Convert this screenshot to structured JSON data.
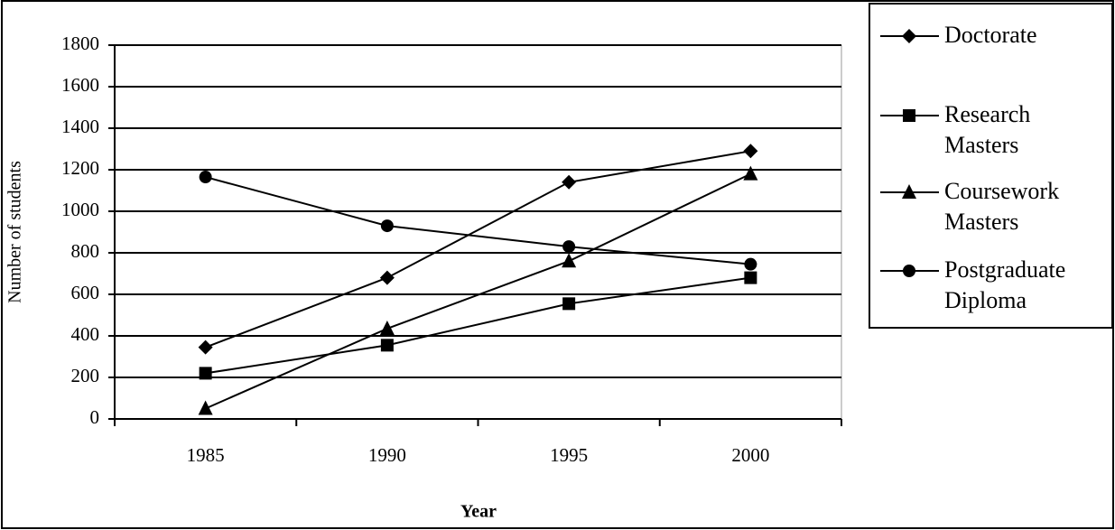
{
  "chart_data": {
    "type": "line",
    "x_label": "Year",
    "y_label": "Number of students",
    "categories": [
      "1985",
      "1990",
      "1995",
      "2000"
    ],
    "series": [
      {
        "name": "Doctorate",
        "color": "#000000",
        "marker": "diamond",
        "values": [
          345,
          680,
          1140,
          1290
        ]
      },
      {
        "name": "Research Masters",
        "color": "#000000",
        "marker": "square",
        "values": [
          220,
          355,
          555,
          680
        ]
      },
      {
        "name": "Coursework Masters",
        "color": "#000000",
        "marker": "triangle",
        "values": [
          50,
          435,
          760,
          1180
        ]
      },
      {
        "name": "Postgraduate Diploma",
        "color": "#000000",
        "marker": "circle",
        "values": [
          1165,
          930,
          830,
          745
        ]
      }
    ],
    "ylim": [
      0,
      1800
    ],
    "yticks": [
      0,
      200,
      400,
      600,
      800,
      1000,
      1200,
      1400,
      1600,
      1800
    ],
    "grid": true,
    "legend": "right"
  }
}
